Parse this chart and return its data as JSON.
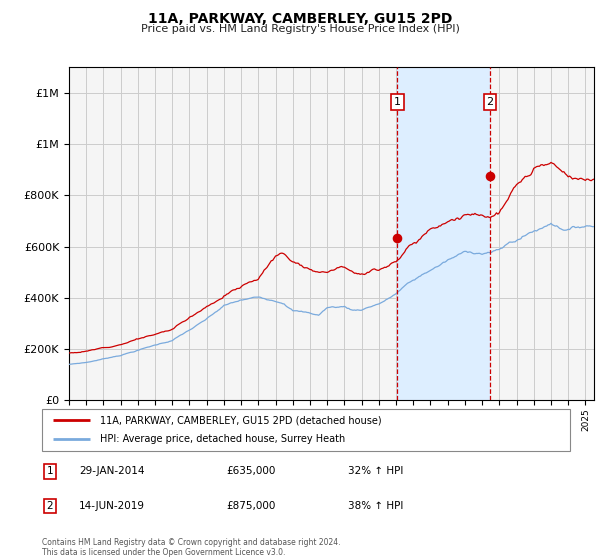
{
  "title": "11A, PARKWAY, CAMBERLEY, GU15 2PD",
  "subtitle": "Price paid vs. HM Land Registry's House Price Index (HPI)",
  "legend_label_red": "11A, PARKWAY, CAMBERLEY, GU15 2PD (detached house)",
  "legend_label_blue": "HPI: Average price, detached house, Surrey Heath",
  "transaction1_date": "29-JAN-2014",
  "transaction1_price": "£635,000",
  "transaction1_hpi": "32% ↑ HPI",
  "transaction1_year": 2014.08,
  "transaction1_value": 635000,
  "transaction2_date": "14-JUN-2019",
  "transaction2_price": "£875,000",
  "transaction2_hpi": "38% ↑ HPI",
  "transaction2_year": 2019.46,
  "transaction2_value": 875000,
  "red_color": "#cc0000",
  "blue_color": "#7aaadd",
  "shade_color": "#ddeeff",
  "grid_color": "#cccccc",
  "bg_color": "#f5f5f5",
  "ylim": [
    0,
    1300000
  ],
  "xlim_start": 1995.0,
  "xlim_end": 2025.5,
  "footer": "Contains HM Land Registry data © Crown copyright and database right 2024.\nThis data is licensed under the Open Government Licence v3.0."
}
